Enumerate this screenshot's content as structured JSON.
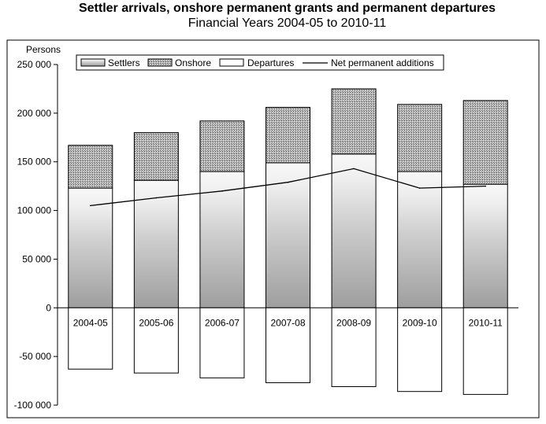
{
  "chart_data": {
    "type": "bar",
    "title": "Settler arrivals, onshore permanent grants and permanent departures",
    "subtitle": "Financial Years 2004-05 to 2010-11",
    "ylabel": "Persons",
    "ylim": [
      -100000,
      250000
    ],
    "yticks": [
      250000,
      200000,
      150000,
      100000,
      50000,
      0,
      -50000,
      -100000
    ],
    "ytick_labels": [
      "250 000",
      "200 000",
      "150 000",
      "100 000",
      "50 000",
      "0",
      "-50 000",
      "-100 000"
    ],
    "categories": [
      "2004-05",
      "2005-06",
      "2006-07",
      "2007-08",
      "2008-09",
      "2009-10",
      "2010-11"
    ],
    "stacked": true,
    "grid": false,
    "legend_position": "top",
    "series": [
      {
        "name": "Settlers",
        "type": "bar",
        "values": [
          123000,
          131000,
          140000,
          149000,
          158000,
          140000,
          127000
        ]
      },
      {
        "name": "Onshore",
        "type": "bar",
        "values": [
          44000,
          49000,
          52000,
          57000,
          67000,
          69000,
          86000
        ]
      },
      {
        "name": "Departures",
        "type": "bar",
        "values": [
          -63000,
          -67000,
          -72000,
          -77000,
          -81000,
          -86000,
          -89000
        ]
      },
      {
        "name": "Net permanent additions",
        "type": "line",
        "values": [
          105000,
          113000,
          120000,
          129000,
          143000,
          123000,
          125000
        ]
      }
    ]
  }
}
